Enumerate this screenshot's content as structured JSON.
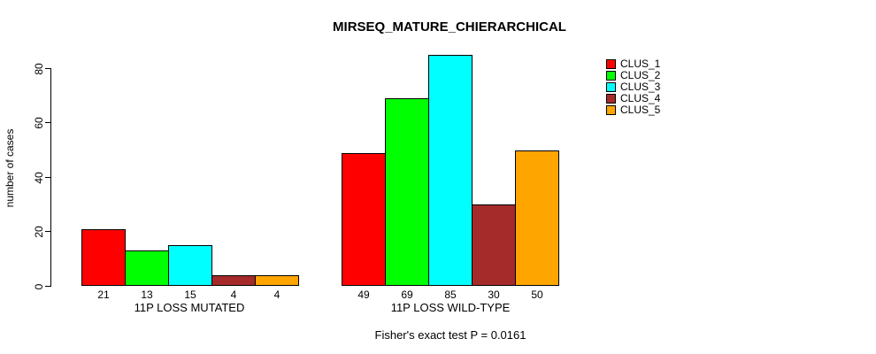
{
  "chart_data": {
    "type": "bar",
    "title": "MIRSEQ_MATURE_CHIERARCHICAL",
    "ylabel": "number of cases",
    "xlabel": "",
    "ylim": [
      0,
      80
    ],
    "yticks": [
      0,
      20,
      40,
      60,
      80
    ],
    "grid": false,
    "legend_position": "right",
    "categories": [
      "11P LOSS MUTATED",
      "11P LOSS WILD-TYPE"
    ],
    "series": [
      {
        "name": "CLUS_1",
        "color": "#ff0000",
        "values": [
          21,
          49
        ]
      },
      {
        "name": "CLUS_2",
        "color": "#00ff00",
        "values": [
          13,
          69
        ]
      },
      {
        "name": "CLUS_3",
        "color": "#00ffff",
        "values": [
          15,
          85
        ]
      },
      {
        "name": "CLUS_4",
        "color": "#a52a2a",
        "values": [
          4,
          30
        ]
      },
      {
        "name": "CLUS_5",
        "color": "#ffa500",
        "values": [
          4,
          50
        ]
      }
    ],
    "bar_value_labels": [
      [
        21,
        13,
        15,
        4,
        4
      ],
      [
        49,
        69,
        85,
        30,
        50
      ]
    ],
    "footnote": "Fisher's exact test P = 0.0161"
  }
}
